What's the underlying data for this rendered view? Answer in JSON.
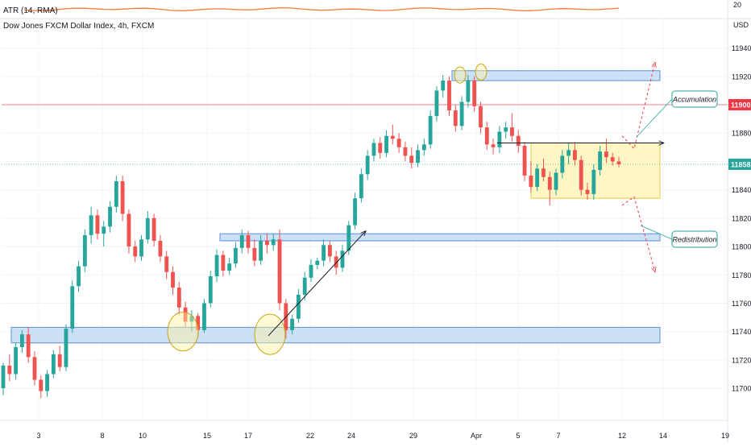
{
  "chart_data": {
    "type": "candlestick",
    "title": "Dow Jones FXCM Dollar Index, 4h, FXCM",
    "indicator": {
      "label": "ATR (14, RMA)",
      "scale_label": "20",
      "color": "#f57c3a"
    },
    "currency": "USD",
    "ylim": [
      11683,
      11950
    ],
    "yticks": [
      11700,
      11720,
      11740,
      11760,
      11780,
      11800,
      11820,
      11840,
      11860,
      11880,
      11900,
      11920,
      11940
    ],
    "xticks": [
      "3",
      "8",
      "10",
      "15",
      "17",
      "22",
      "24",
      "29",
      "Apr",
      "5",
      "7",
      "12",
      "14",
      "19"
    ],
    "price_tags": [
      {
        "value": "11900",
        "color": "#f23645"
      },
      {
        "value": "11858",
        "color": "#26a69a"
      }
    ],
    "annotations": [
      "Accumulation",
      "Redistribution"
    ],
    "colors": {
      "up": "#26a69a",
      "down": "#ef5350",
      "zone_blue": "#bbd6f5",
      "zone_yellow": "#fff5b8"
    },
    "candles": [
      [
        11700,
        11718,
        11695,
        11716
      ],
      [
        11716,
        11724,
        11705,
        11710
      ],
      [
        11710,
        11732,
        11706,
        11729
      ],
      [
        11729,
        11741,
        11725,
        11738
      ],
      [
        11738,
        11743,
        11718,
        11722
      ],
      [
        11722,
        11726,
        11702,
        11706
      ],
      [
        11706,
        11709,
        11693,
        11698
      ],
      [
        11698,
        11713,
        11694,
        11710
      ],
      [
        11710,
        11727,
        11707,
        11724
      ],
      [
        11724,
        11730,
        11712,
        11715
      ],
      [
        11715,
        11745,
        11712,
        11742
      ],
      [
        11742,
        11776,
        11739,
        11772
      ],
      [
        11772,
        11790,
        11768,
        11786
      ],
      [
        11786,
        11812,
        11782,
        11808
      ],
      [
        11808,
        11828,
        11802,
        11822
      ],
      [
        11822,
        11826,
        11805,
        11809
      ],
      [
        11809,
        11818,
        11800,
        11814
      ],
      [
        11814,
        11832,
        11810,
        11828
      ],
      [
        11828,
        11850,
        11824,
        11846
      ],
      [
        11846,
        11850,
        11818,
        11823
      ],
      [
        11823,
        11826,
        11795,
        11800
      ],
      [
        11800,
        11804,
        11789,
        11793
      ],
      [
        11793,
        11808,
        11790,
        11805
      ],
      [
        11805,
        11825,
        11802,
        11820
      ],
      [
        11820,
        11823,
        11800,
        11804
      ],
      [
        11804,
        11808,
        11789,
        11793
      ],
      [
        11793,
        11797,
        11777,
        11782
      ],
      [
        11782,
        11786,
        11766,
        11771
      ],
      [
        11771,
        11775,
        11752,
        11757
      ],
      [
        11757,
        11761,
        11743,
        11747
      ],
      [
        11747,
        11755,
        11740,
        11751
      ],
      [
        11751,
        11753,
        11737,
        11741
      ],
      [
        11741,
        11763,
        11739,
        11760
      ],
      [
        11760,
        11783,
        11757,
        11779
      ],
      [
        11779,
        11798,
        11775,
        11794
      ],
      [
        11794,
        11797,
        11779,
        11783
      ],
      [
        11783,
        11792,
        11780,
        11788
      ],
      [
        11788,
        11803,
        11785,
        11799
      ],
      [
        11799,
        11812,
        11795,
        11808
      ],
      [
        11808,
        11811,
        11795,
        11799
      ],
      [
        11799,
        11805,
        11786,
        11790
      ],
      [
        11790,
        11808,
        11787,
        11804
      ],
      [
        11804,
        11809,
        11795,
        11801
      ],
      [
        11801,
        11809,
        11797,
        11805
      ],
      [
        11805,
        11812,
        11755,
        11760
      ],
      [
        11760,
        11763,
        11735,
        11741
      ],
      [
        11741,
        11752,
        11738,
        11749
      ],
      [
        11749,
        11770,
        11746,
        11766
      ],
      [
        11766,
        11782,
        11762,
        11778
      ],
      [
        11778,
        11791,
        11775,
        11787
      ],
      [
        11787,
        11792,
        11784,
        11790
      ],
      [
        11790,
        11805,
        11786,
        11801
      ],
      [
        11801,
        11804,
        11789,
        11793
      ],
      [
        11793,
        11797,
        11780,
        11785
      ],
      [
        11785,
        11801,
        11782,
        11797
      ],
      [
        11797,
        11818,
        11794,
        11815
      ],
      [
        11815,
        11838,
        11812,
        11834
      ],
      [
        11834,
        11855,
        11831,
        11851
      ],
      [
        11851,
        11868,
        11847,
        11864
      ],
      [
        11864,
        11876,
        11860,
        11873
      ],
      [
        11873,
        11877,
        11862,
        11866
      ],
      [
        11866,
        11882,
        11863,
        11878
      ],
      [
        11878,
        11886,
        11872,
        11876
      ],
      [
        11876,
        11880,
        11866,
        11870
      ],
      [
        11870,
        11874,
        11860,
        11864
      ],
      [
        11864,
        11870,
        11855,
        11859
      ],
      [
        11859,
        11872,
        11856,
        11868
      ],
      [
        11868,
        11876,
        11864,
        11872
      ],
      [
        11872,
        11896,
        11869,
        11892
      ],
      [
        11892,
        11913,
        11888,
        11910
      ],
      [
        11910,
        11921,
        11905,
        11917
      ],
      [
        11917,
        11920,
        11892,
        11896
      ],
      [
        11896,
        11900,
        11881,
        11885
      ],
      [
        11885,
        11906,
        11882,
        11902
      ],
      [
        11902,
        11921,
        11898,
        11917
      ],
      [
        11917,
        11920,
        11895,
        11899
      ],
      [
        11899,
        11902,
        11880,
        11884
      ],
      [
        11884,
        11888,
        11868,
        11872
      ],
      [
        11872,
        11876,
        11865,
        11870
      ],
      [
        11870,
        11885,
        11866,
        11881
      ],
      [
        11881,
        11888,
        11876,
        11884
      ],
      [
        11884,
        11894,
        11874,
        11878
      ],
      [
        11878,
        11882,
        11866,
        11871
      ],
      [
        11871,
        11874,
        11846,
        11850
      ],
      [
        11850,
        11860,
        11838,
        11842
      ],
      [
        11842,
        11858,
        11839,
        11855
      ],
      [
        11855,
        11862,
        11846,
        11849
      ],
      [
        11849,
        11853,
        11829,
        11840
      ],
      [
        11840,
        11855,
        11836,
        11852
      ],
      [
        11852,
        11868,
        11848,
        11864
      ],
      [
        11864,
        11873,
        11858,
        11868
      ],
      [
        11868,
        11874,
        11857,
        11861
      ],
      [
        11861,
        11864,
        11836,
        11840
      ],
      [
        11840,
        11845,
        11833,
        11837
      ],
      [
        11837,
        11858,
        11833,
        11854
      ],
      [
        11854,
        11871,
        11850,
        11867
      ],
      [
        11867,
        11876,
        11859,
        11863
      ],
      [
        11863,
        11866,
        11857,
        11860
      ],
      [
        11860,
        11863,
        11856,
        11858
      ]
    ]
  }
}
